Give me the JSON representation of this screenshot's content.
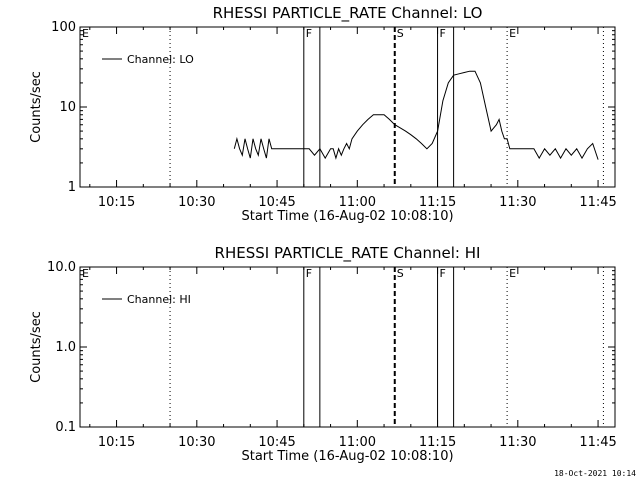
{
  "chart_data": [
    {
      "type": "line",
      "title": "RHESSI PARTICLE_RATE Channel: LO",
      "xlabel": "Start Time (16-Aug-02 10:08:10)",
      "ylabel": "Counts/sec",
      "y_scale": "log",
      "ylim": [
        1,
        100
      ],
      "y_ticks": [
        1,
        10,
        100
      ],
      "y_tick_labels": [
        "1",
        "10",
        "100"
      ],
      "x_tick_labels": [
        "10:15",
        "10:30",
        "10:45",
        "11:00",
        "11:15",
        "11:30",
        "11:45"
      ],
      "xlim": [
        "10:08:10",
        "11:48:10"
      ],
      "legend": "top-left",
      "series": [
        {
          "name": "Channel: LO",
          "x": [
            "10:37:00",
            "10:37:30",
            "10:38:00",
            "10:38:30",
            "10:39:00",
            "10:39:30",
            "10:40:00",
            "10:40:30",
            "10:41:00",
            "10:41:30",
            "10:42:00",
            "10:42:30",
            "10:43:00",
            "10:43:30",
            "10:44:00",
            "10:44:30",
            "10:45:00",
            "10:46:00",
            "10:47:00",
            "10:48:00",
            "10:49:00",
            "10:50:00",
            "10:51:00",
            "10:52:00",
            "10:53:00",
            "10:54:00",
            "10:55:00",
            "10:55:30",
            "10:56:00",
            "10:56:30",
            "10:57:00",
            "10:57:30",
            "10:58:00",
            "10:58:30",
            "10:59:00",
            "11:00:00",
            "11:01:00",
            "11:02:00",
            "11:03:00",
            "11:04:00",
            "11:05:00",
            "11:06:00",
            "11:07:00",
            "11:08:00",
            "11:09:00",
            "11:10:00",
            "11:11:00",
            "11:12:00",
            "11:13:00",
            "11:14:00",
            "11:15:00",
            "11:16:00",
            "11:17:00",
            "11:18:00",
            "11:19:00",
            "11:20:00",
            "11:21:00",
            "11:22:00",
            "11:23:00",
            "11:24:00",
            "11:25:00",
            "11:26:00",
            "11:26:30",
            "11:27:00",
            "11:27:30",
            "11:28:00",
            "11:28:30",
            "11:29:00",
            "11:30:00",
            "11:31:00",
            "11:32:00",
            "11:33:00",
            "11:34:00",
            "11:35:00",
            "11:36:00",
            "11:37:00",
            "11:38:00",
            "11:39:00",
            "11:40:00",
            "11:41:00",
            "11:42:00",
            "11:43:00",
            "11:44:00",
            "11:45:00"
          ],
          "y": [
            3,
            4,
            3,
            2.5,
            4,
            3,
            2.3,
            4,
            3,
            2.5,
            4,
            3,
            2.3,
            4,
            3,
            3,
            3,
            3,
            3,
            3,
            3,
            3,
            3,
            2.5,
            3,
            2.3,
            3,
            3,
            2.3,
            3,
            2.5,
            3,
            3.5,
            3,
            4,
            5,
            6,
            7,
            8,
            8,
            8,
            7,
            6,
            5.5,
            5,
            4.5,
            4,
            3.5,
            3,
            3.5,
            5,
            12,
            20,
            25,
            26,
            27,
            28,
            28,
            20,
            10,
            5,
            6,
            7,
            5,
            4,
            4,
            3,
            3,
            3,
            3,
            3,
            3,
            2.3,
            3,
            2.5,
            3,
            2.3,
            3,
            2.5,
            3,
            2.3,
            3,
            3.5,
            2.2
          ]
        }
      ],
      "annotations": [
        {
          "label": "E",
          "x": "10:08:10",
          "style": "dotted"
        },
        {
          "label": "",
          "x": "10:25:00",
          "style": "dotted"
        },
        {
          "label": "F",
          "x": "10:50:00",
          "style": "solid"
        },
        {
          "label": "",
          "x": "10:53:00",
          "style": "solid"
        },
        {
          "label": "S",
          "x": "11:07:00",
          "style": "dashed"
        },
        {
          "label": "F",
          "x": "11:15:00",
          "style": "solid"
        },
        {
          "label": "",
          "x": "11:18:00",
          "style": "solid"
        },
        {
          "label": "E",
          "x": "11:28:00",
          "style": "dotted"
        },
        {
          "label": "",
          "x": "11:46:00",
          "style": "dotted"
        }
      ]
    },
    {
      "type": "line",
      "title": "RHESSI PARTICLE_RATE Channel: HI",
      "xlabel": "Start Time (16-Aug-02 10:08:10)",
      "ylabel": "Counts/sec",
      "y_scale": "log",
      "ylim": [
        0.1,
        10
      ],
      "y_ticks": [
        0.1,
        1,
        10
      ],
      "y_tick_labels": [
        "0.1",
        "1.0",
        "10.0"
      ],
      "x_tick_labels": [
        "10:15",
        "10:30",
        "10:45",
        "11:00",
        "11:15",
        "11:30",
        "11:45"
      ],
      "xlim": [
        "10:08:10",
        "11:48:10"
      ],
      "legend": "top-left",
      "series": [
        {
          "name": "Channel: HI",
          "x": [],
          "y": []
        }
      ],
      "annotations": [
        {
          "label": "E",
          "x": "10:08:10",
          "style": "dotted"
        },
        {
          "label": "",
          "x": "10:25:00",
          "style": "dotted"
        },
        {
          "label": "F",
          "x": "10:50:00",
          "style": "solid"
        },
        {
          "label": "",
          "x": "10:53:00",
          "style": "solid"
        },
        {
          "label": "S",
          "x": "11:07:00",
          "style": "dashed"
        },
        {
          "label": "F",
          "x": "11:15:00",
          "style": "solid"
        },
        {
          "label": "",
          "x": "11:18:00",
          "style": "solid"
        },
        {
          "label": "E",
          "x": "11:28:00",
          "style": "dotted"
        },
        {
          "label": "",
          "x": "11:46:00",
          "style": "dotted"
        }
      ]
    }
  ],
  "footer": {
    "timestamp": "18-Oct-2021 10:14"
  }
}
